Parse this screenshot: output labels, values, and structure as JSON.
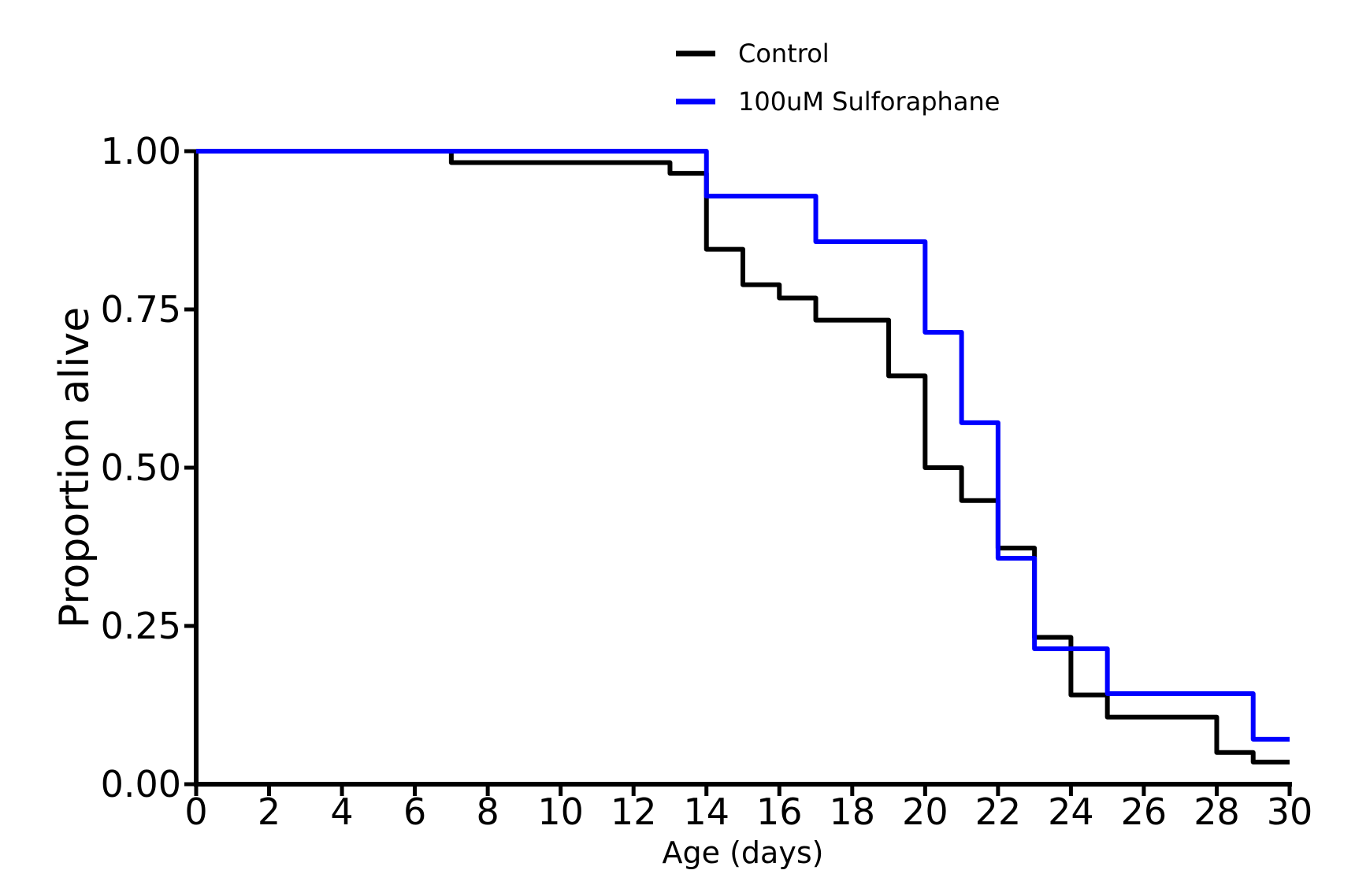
{
  "chart_data": {
    "type": "line",
    "subtype": "kaplan-meier-step-survival",
    "title": "",
    "xlabel": "Age (days)",
    "ylabel": "Proportion alive",
    "xlim": [
      0,
      30
    ],
    "ylim": [
      0,
      1
    ],
    "grid": false,
    "legend_position": "top-center",
    "xticks": [
      {
        "v": 0,
        "label": "0"
      },
      {
        "v": 2,
        "label": "2"
      },
      {
        "v": 4,
        "label": "4"
      },
      {
        "v": 6,
        "label": "6"
      },
      {
        "v": 8,
        "label": "8"
      },
      {
        "v": 10,
        "label": "10"
      },
      {
        "v": 12,
        "label": "12"
      },
      {
        "v": 14,
        "label": "14"
      },
      {
        "v": 16,
        "label": "16"
      },
      {
        "v": 18,
        "label": "18"
      },
      {
        "v": 20,
        "label": "20"
      },
      {
        "v": 22,
        "label": "22"
      },
      {
        "v": 24,
        "label": "24"
      },
      {
        "v": 26,
        "label": "26"
      },
      {
        "v": 28,
        "label": "28"
      },
      {
        "v": 30,
        "label": "30"
      }
    ],
    "yticks": [
      {
        "v": 1.0,
        "label": "1.00"
      },
      {
        "v": 0.75,
        "label": "0.75"
      },
      {
        "v": 0.5,
        "label": "0.50"
      },
      {
        "v": 0.25,
        "label": "0.25"
      },
      {
        "v": 0.0,
        "label": "0.00"
      }
    ],
    "series": [
      {
        "id": "control",
        "name": "Control",
        "color": "#000000",
        "end_x": 30,
        "step_points": [
          [
            0,
            1.0
          ],
          [
            7,
            0.982
          ],
          [
            13,
            0.965
          ],
          [
            14,
            0.845
          ],
          [
            15,
            0.789
          ],
          [
            16,
            0.768
          ],
          [
            17,
            0.733
          ],
          [
            19,
            0.645
          ],
          [
            20,
            0.5
          ],
          [
            21,
            0.448
          ],
          [
            22,
            0.373
          ],
          [
            23,
            0.232
          ],
          [
            24,
            0.141
          ],
          [
            25,
            0.106
          ],
          [
            28,
            0.05
          ],
          [
            29,
            0.035
          ]
        ]
      },
      {
        "id": "sulforaphane",
        "name": "100uM Sulforaphane",
        "color": "#0000ff",
        "end_x": 30,
        "step_points": [
          [
            0,
            1.0
          ],
          [
            14,
            0.929
          ],
          [
            17,
            0.857
          ],
          [
            20,
            0.714
          ],
          [
            21,
            0.571
          ],
          [
            22,
            0.357
          ],
          [
            23,
            0.214
          ],
          [
            25,
            0.143
          ],
          [
            29,
            0.071
          ]
        ]
      }
    ]
  }
}
